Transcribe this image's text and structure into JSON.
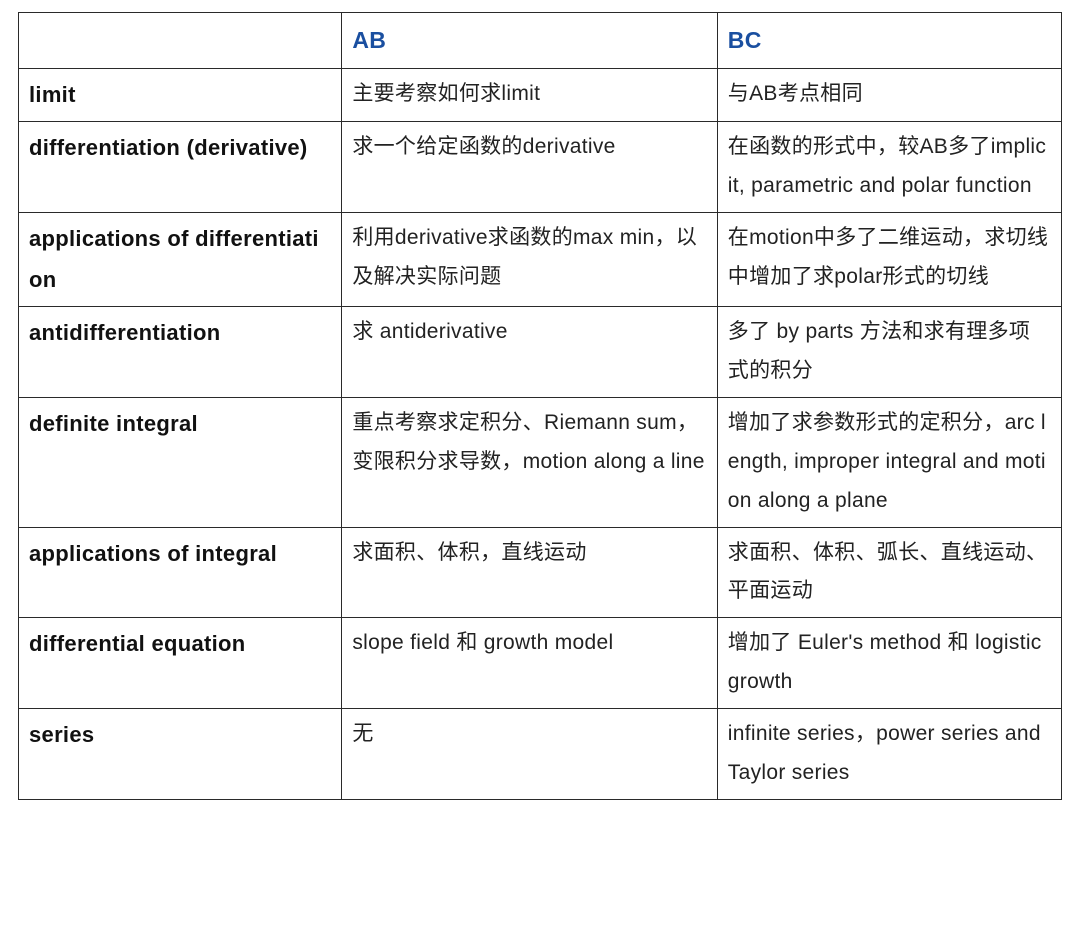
{
  "table": {
    "header_color": "#1a4fa0",
    "border_color": "#2a2a2a",
    "body_font_size": 21,
    "header_font_size": 23,
    "topic_font_size": 22,
    "col_widths_pct": [
      31,
      36,
      33
    ],
    "columns": [
      "",
      "AB",
      "BC"
    ],
    "rows": [
      {
        "topic": "limit",
        "ab": "主要考察如何求limit",
        "bc": "与AB考点相同"
      },
      {
        "topic": "differentiation (derivative)",
        "ab": "求一个给定函数的derivative",
        "bc": "在函数的形式中，较AB多了implicit, parametric and polar  function"
      },
      {
        "topic": "applications of differentiation",
        "ab": "利用derivative求函数的max min，以及解决实际问题",
        "bc": "在motion中多了二维运动，求切线中增加了求polar形式的切线"
      },
      {
        "topic": "antidifferentiation",
        "ab": "求 antiderivative",
        "bc": "多了 by parts 方法和求有理多项式的积分"
      },
      {
        "topic": "definite integral",
        "ab": "重点考察求定积分、Riemann sum，变限积分求导数，motion along a line",
        "bc": "增加了求参数形式的定积分，arc length, improper  integral and motion along a plane"
      },
      {
        "topic": "applications of integral",
        "ab": "求面积、体积，直线运动",
        "bc": "求面积、体积、弧长、直线运动、平面运动"
      },
      {
        "topic": "differential equation",
        "ab": "slope field 和 growth model",
        "bc": "增加了 Euler's method 和 logistic growth"
      },
      {
        "topic": "series",
        "ab": "无",
        "bc": "infinite series，power series and Taylor series"
      }
    ]
  }
}
